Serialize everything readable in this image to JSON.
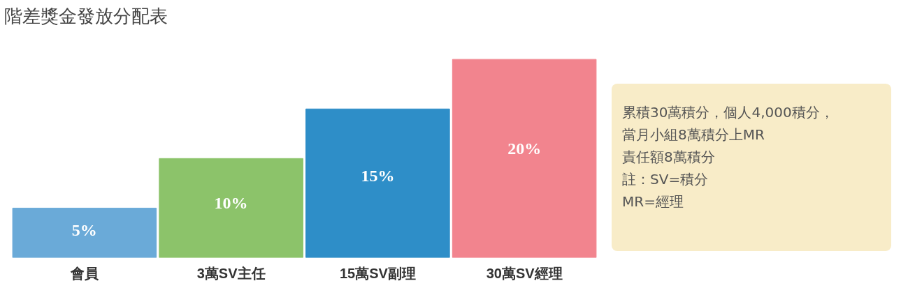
{
  "chart_data": {
    "type": "bar",
    "title": "階差獎金發放分配表",
    "categories": [
      "會員",
      "3萬SV主任",
      "15萬SV副理",
      "30萬SV經理"
    ],
    "values": [
      5,
      10,
      15,
      20
    ],
    "colors": [
      "#6aaad8",
      "#8cc36a",
      "#2e8ec8",
      "#f2848e"
    ],
    "value_labels": [
      "5%",
      "10%",
      "15%",
      "20%"
    ],
    "annotations": [
      "累積30萬積分，個人4,000積分，",
      "當月小組8萬積分上MR",
      "責任額8萬積分",
      "註：SV=積分",
      "MR=經理"
    ]
  }
}
